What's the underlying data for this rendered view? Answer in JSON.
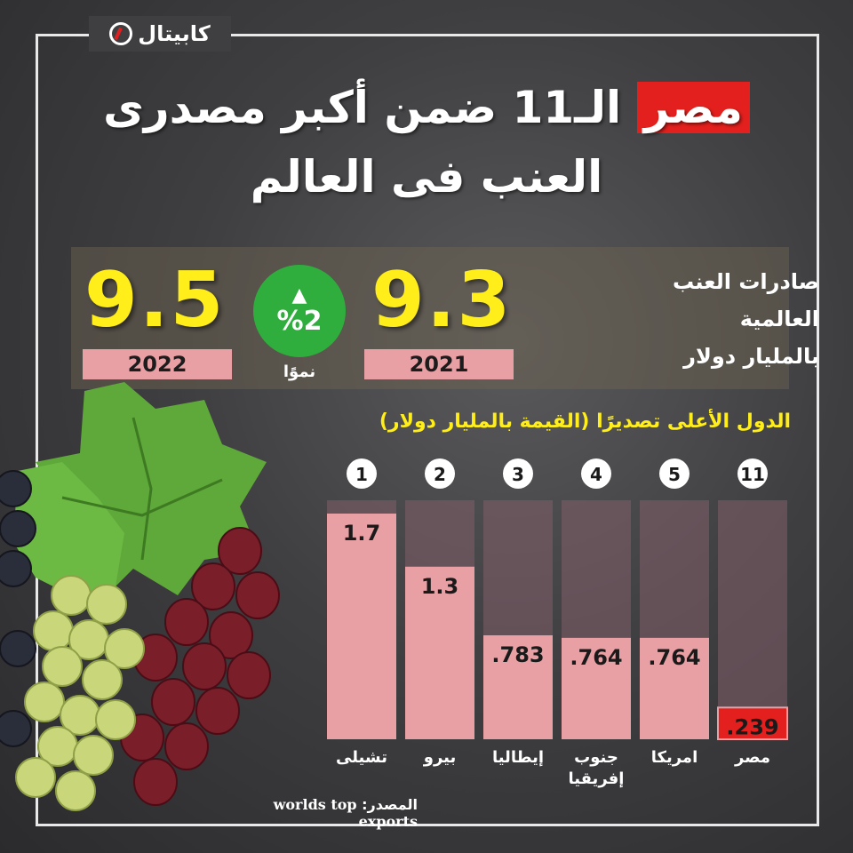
{
  "logo": {
    "text": "كابيتال"
  },
  "title": {
    "highlight": "مصر",
    "line1_rest": "الـ11 ضمن أكبر مصدرى",
    "line2": "العنب فى العالم"
  },
  "stats": {
    "label_lines": [
      "صادرات العنب",
      "العالمية",
      "بالمليار دولار"
    ],
    "value_2021": "9.3",
    "year_2021": "2021",
    "value_2022": "9.5",
    "year_2022": "2022",
    "growth_value": "%2",
    "growth_label": "نموًا"
  },
  "chart_data": {
    "type": "bar",
    "title": "الدول الأعلى تصديرًا (القيمة بالمليار دولار)",
    "categories": [
      "مصر",
      "امريكا",
      "جنوب إفريقيا",
      "إيطاليا",
      "بيرو",
      "تشيلى"
    ],
    "ranks": [
      "11",
      "5",
      "4",
      "3",
      "2",
      "1"
    ],
    "values": [
      0.239,
      0.764,
      0.764,
      0.783,
      1.3,
      1.7
    ],
    "value_labels": [
      ".239",
      ".764",
      ".764",
      ".783",
      "1.3",
      "1.7"
    ],
    "ylim": [
      0,
      1.9
    ],
    "colors": {
      "bar": "#e9a0a4",
      "highlight": "#e3201d",
      "track": "rgba(130,95,105,0.55)"
    }
  },
  "source": {
    "label": "المصدر:",
    "text": "worlds top exports"
  },
  "colors": {
    "accent_yellow": "#ffee1a",
    "accent_red": "#e3201d",
    "growth_green": "#2fae3e"
  }
}
